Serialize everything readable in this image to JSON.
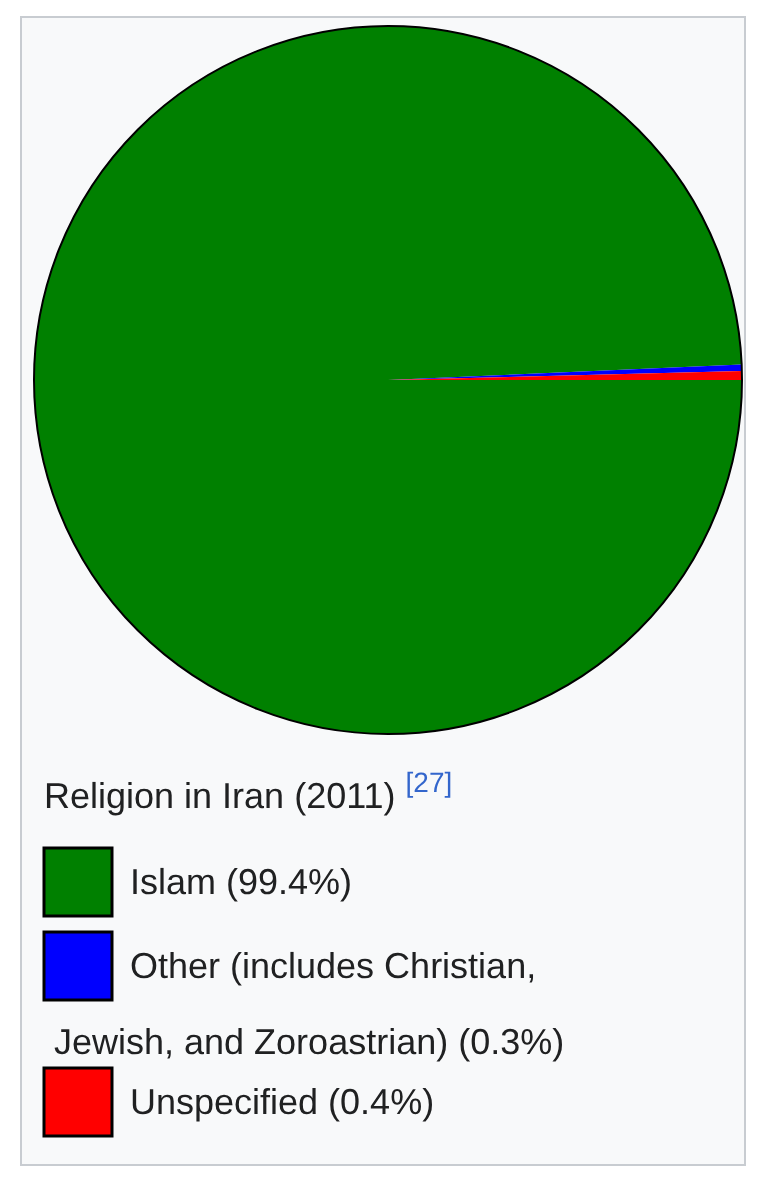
{
  "chart_data": {
    "type": "pie",
    "title": "Religion in Iran (2011) $^{[27]}$",
    "categories": [
      "Islam (99.4%)",
      "Other (includes Christian, Jewish, and Zoroastrian) (0.3%)",
      "Unspecified (0.4%)"
    ],
    "values": [
      99.4,
      0.3,
      0.4
    ],
    "colors": [
      "#008000",
      "#0000ff",
      "#ff0000"
    ],
    "legend": "bottom"
  }
}
